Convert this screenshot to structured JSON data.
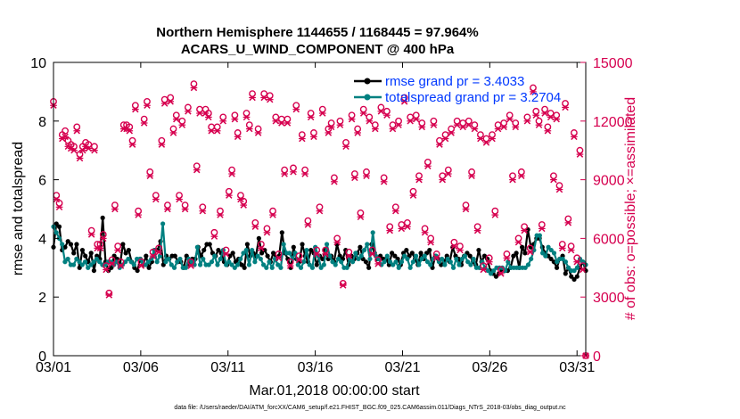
{
  "chart_data": {
    "type": "line",
    "title": "Northern Hemisphere 1144655 / 1168445 = 97.964%",
    "subtitle": "ACARS_U_WIND_COMPONENT @ 400 hPa",
    "xlabel": "Mar.01,2018 00:00:00 start",
    "ylabel": "rmse and totalspread",
    "ylabel_right": "# of obs: o=possible; ×=assimilated",
    "x_ticks": [
      "03/01",
      "03/06",
      "03/11",
      "03/16",
      "03/21",
      "03/26",
      "03/31"
    ],
    "x_tick_days": [
      0,
      5,
      10,
      15,
      20,
      25,
      30
    ],
    "xlim": [
      0,
      30.5
    ],
    "ylim": [
      0,
      10
    ],
    "y_ticks": [
      "0",
      "2",
      "4",
      "6",
      "8",
      "10"
    ],
    "ylim_right": [
      0,
      15000
    ],
    "y_ticks_right": [
      "0",
      "3000",
      "6000",
      "9000",
      "12000",
      "15000"
    ],
    "legend_position": "top-right",
    "footer": "data file: /Users/raeder/DAI/ATM_forcXX/CAM6_setup/f.e21.FHIST_BGC.f09_025.CAM6assim.011/Diags_NTrS_2018-03/obs_diag_output.nc",
    "series": [
      {
        "name": "rmse grand pr = 3.4033",
        "color": "#000000",
        "axis": "left",
        "values": [
          3.7,
          4.5,
          4.4,
          3.6,
          3.7,
          3.9,
          3.8,
          3.5,
          3.8,
          3.0,
          3.6,
          3.4,
          3.2,
          3.5,
          2.9,
          3.4,
          3.3,
          4.7,
          3.2,
          2.9,
          3.0,
          3.4,
          3.3,
          3.1,
          3.8,
          3.5,
          3.6,
          3.2,
          3.0,
          2.9,
          3.3,
          3.1,
          3.4,
          3.0,
          3.2,
          3.6,
          3.6,
          3.9,
          3.1,
          3.4,
          3.3,
          3.4,
          3.4,
          3.2,
          3.2,
          3.0,
          3.4,
          3.1,
          3.3,
          3.3,
          3.7,
          3.4,
          3.6,
          3.8,
          3.8,
          3.5,
          3.4,
          3.6,
          3.5,
          3.2,
          3.1,
          3.4,
          3.5,
          3.2,
          3.3,
          3.1,
          3.0,
          3.8,
          3.4,
          3.5,
          3.4,
          4.0,
          3.5,
          3.6,
          3.4,
          3.2,
          3.5,
          3.3,
          3.4,
          4.2,
          3.5,
          3.3,
          3.0,
          3.7,
          3.3,
          3.2,
          3.8,
          3.4,
          3.2,
          3.6,
          3.5,
          3.1,
          3.4,
          3.3,
          3.6,
          3.3,
          3.4,
          3.2,
          3.8,
          3.4,
          3.3,
          3.6,
          3.1,
          3.4,
          3.3,
          3.5,
          3.7,
          3.3,
          3.2,
          3.0,
          3.8,
          3.5,
          3.3,
          3.4,
          3.3,
          3.3,
          3.1,
          3.5,
          3.4,
          3.3,
          3.1,
          3.5,
          3.6,
          3.4,
          3.5,
          3.3,
          3.1,
          3.5,
          3.3,
          3.5,
          3.6,
          3.0,
          3.4,
          3.3,
          3.1,
          3.2,
          3.4,
          3.2,
          3.7,
          3.4,
          3.3,
          3.1,
          3.4,
          3.5,
          3.4,
          3.2,
          3.1,
          3.6,
          3.2,
          3.4,
          3.3,
          2.9,
          2.8,
          2.7,
          2.8,
          2.9,
          2.9,
          2.9,
          3.0,
          3.4,
          3.5,
          3.0,
          3.7,
          3.5,
          4.3,
          3.7,
          3.8,
          4.0,
          4.0,
          3.7,
          3.5,
          3.4,
          3.3,
          3.2,
          3.0,
          3.3,
          3.4,
          2.8,
          3.0,
          2.7,
          2.6,
          2.7,
          3.0,
          3.2,
          2.9
        ]
      },
      {
        "name": "totalspread grand pr = 3.2704",
        "color": "#008080",
        "axis": "left",
        "values": [
          4.4,
          4.2,
          4.0,
          3.8,
          3.2,
          3.3,
          3.1,
          3.1,
          3.3,
          3.2,
          3.1,
          3.2,
          3.0,
          3.1,
          3.2,
          3.3,
          3.2,
          3.1,
          3.1,
          3.2,
          3.2,
          3.1,
          3.2,
          3.0,
          3.1,
          3.2,
          3.3,
          3.2,
          3.1,
          3.3,
          3.3,
          3.2,
          3.1,
          3.2,
          3.3,
          3.6,
          3.2,
          3.4,
          4.5,
          3.2,
          3.3,
          3.1,
          3.0,
          3.2,
          3.3,
          3.0,
          3.0,
          3.3,
          3.2,
          3.1,
          3.7,
          3.1,
          3.3,
          3.1,
          3.1,
          3.2,
          3.4,
          3.1,
          3.3,
          3.6,
          3.1,
          3.2,
          3.1,
          3.0,
          3.1,
          3.3,
          3.5,
          3.6,
          3.1,
          3.6,
          3.2,
          3.4,
          3.3,
          3.1,
          3.0,
          3.2,
          3.0,
          3.3,
          3.1,
          3.0,
          3.8,
          3.5,
          3.5,
          3.3,
          3.5,
          3.1,
          3.0,
          3.2,
          3.6,
          3.1,
          3.0,
          3.7,
          3.4,
          3.0,
          3.1,
          3.8,
          3.4,
          3.2,
          3.1,
          3.3,
          3.2,
          3.0,
          3.0,
          3.3,
          3.2,
          3.5,
          3.3,
          3.4,
          3.6,
          3.8,
          3.3,
          4.2,
          3.4,
          3.3,
          3.1,
          3.2,
          3.4,
          3.2,
          3.1,
          3.2,
          3.0,
          3.2,
          3.4,
          3.3,
          3.0,
          3.2,
          3.4,
          3.1,
          3.3,
          3.4,
          3.2,
          3.1,
          3.3,
          3.4,
          3.2,
          3.3,
          3.1,
          3.3,
          3.2,
          3.0,
          3.3,
          3.1,
          3.3,
          3.4,
          3.2,
          3.1,
          3.3,
          3.0,
          3.0,
          3.2,
          3.0,
          2.9,
          2.8,
          2.9,
          3.0,
          3.0,
          3.0,
          2.9,
          3.2,
          3.0,
          3.0,
          3.0,
          3.0,
          3.0,
          3.0,
          3.1,
          3.3,
          3.6,
          4.1,
          4.1,
          3.5,
          3.4,
          3.7,
          3.6,
          3.5,
          3.2,
          3.3,
          3.3,
          3.2,
          3.0,
          2.9,
          2.9,
          3.0,
          3.3,
          3.2,
          3.1
        ]
      },
      {
        "name": "obs possible",
        "color": "#d6004f",
        "axis": "right",
        "marker": "o",
        "values": [
          13000,
          8200,
          7800,
          11300,
          11500,
          11000,
          10800,
          10700,
          11700,
          10300,
          10700,
          10900,
          10800,
          6400,
          10700,
          5700,
          5700,
          6200,
          4600,
          3200,
          4900,
          7700,
          5600,
          4800,
          11800,
          11800,
          11700,
          11000,
          12800,
          7400,
          4800,
          12100,
          13000,
          9400,
          5300,
          8200,
          5500,
          11000,
          13100,
          7700,
          13200,
          11600,
          12300,
          8200,
          12000,
          7700,
          12700,
          4800,
          13900,
          9700,
          12600,
          7600,
          12600,
          12400,
          11700,
          6300,
          11700,
          7400,
          12200,
          5400,
          8400,
          9500,
          12300,
          11400,
          8200,
          7900,
          12400,
          11800,
          13400,
          6800,
          11600,
          5700,
          13400,
          6500,
          13300,
          7400,
          12200,
          5200,
          12100,
          9500,
          12100,
          4800,
          9600,
          12800,
          5100,
          11300,
          9500,
          6900,
          12400,
          11400,
          5400,
          7600,
          12600,
          5400,
          11600,
          11900,
          9100,
          6000,
          12000,
          3700,
          10900,
          5300,
          12300,
          9300,
          11600,
          7300,
          12600,
          9400,
          12200,
          5400,
          11800,
          4900,
          12700,
          9100,
          12500,
          6600,
          11800,
          7600,
          12000,
          6700,
          13200,
          6800,
          12200,
          8400,
          12300,
          9200,
          11900,
          6500,
          9900,
          6000,
          12000,
          5200,
          11000,
          9200,
          11300,
          9500,
          11600,
          5800,
          12000,
          5600,
          11900,
          7700,
          12000,
          9400,
          11800,
          6600,
          11300,
          4600,
          11100,
          5000,
          11300,
          7400,
          11800,
          4400,
          11900,
          5200,
          12300,
          9200,
          11900,
          6000,
          9400,
          6600,
          12200,
          5500,
          13700,
          12500,
          12000,
          6700,
          12600,
          11700,
          12400,
          9200,
          12300,
          8700,
          5700,
          12900,
          7000,
          5600,
          11400,
          5000,
          10500,
          4600,
          0
        ]
      },
      {
        "name": "obs assimilated",
        "color": "#d6004f",
        "axis": "right",
        "marker": "x",
        "values": [
          12800,
          8000,
          7600,
          11100,
          11200,
          10700,
          10600,
          10500,
          11500,
          10100,
          10500,
          10700,
          10600,
          6200,
          10500,
          5500,
          5500,
          6000,
          4400,
          3100,
          4700,
          7500,
          5400,
          4600,
          11600,
          11600,
          11500,
          10800,
          12600,
          7200,
          4600,
          11900,
          12800,
          9200,
          5100,
          8000,
          5300,
          10800,
          12900,
          7500,
          13000,
          11400,
          12100,
          8000,
          11800,
          7500,
          12500,
          4600,
          13700,
          9500,
          12400,
          7400,
          12400,
          12200,
          11500,
          6100,
          11500,
          7200,
          12000,
          5200,
          8200,
          9300,
          12100,
          11200,
          8000,
          7700,
          12200,
          11600,
          13200,
          6600,
          11400,
          5500,
          13200,
          6300,
          13100,
          7200,
          12000,
          5000,
          11900,
          9300,
          11900,
          4600,
          9400,
          12600,
          4900,
          11100,
          9300,
          6700,
          12200,
          11200,
          5200,
          7400,
          12400,
          5200,
          11400,
          11700,
          8900,
          5800,
          11800,
          3600,
          10700,
          5100,
          12100,
          9100,
          11400,
          7100,
          12400,
          9200,
          12000,
          5200,
          11600,
          4700,
          12500,
          8900,
          12300,
          6400,
          11600,
          7400,
          11800,
          6500,
          13000,
          6600,
          12000,
          8200,
          12100,
          9000,
          11700,
          6300,
          9700,
          5800,
          11800,
          5000,
          10800,
          9000,
          11100,
          9300,
          11400,
          5600,
          11800,
          5400,
          11700,
          7500,
          11800,
          9200,
          11600,
          6400,
          11100,
          4400,
          10900,
          4800,
          11100,
          7200,
          11600,
          4200,
          11700,
          5000,
          12100,
          9000,
          11700,
          5800,
          9200,
          6400,
          12000,
          5300,
          13500,
          12300,
          11800,
          6500,
          12400,
          11500,
          12200,
          9000,
          12100,
          8500,
          5500,
          12700,
          6800,
          5400,
          11200,
          4800,
          10300,
          4400,
          0
        ]
      }
    ]
  }
}
